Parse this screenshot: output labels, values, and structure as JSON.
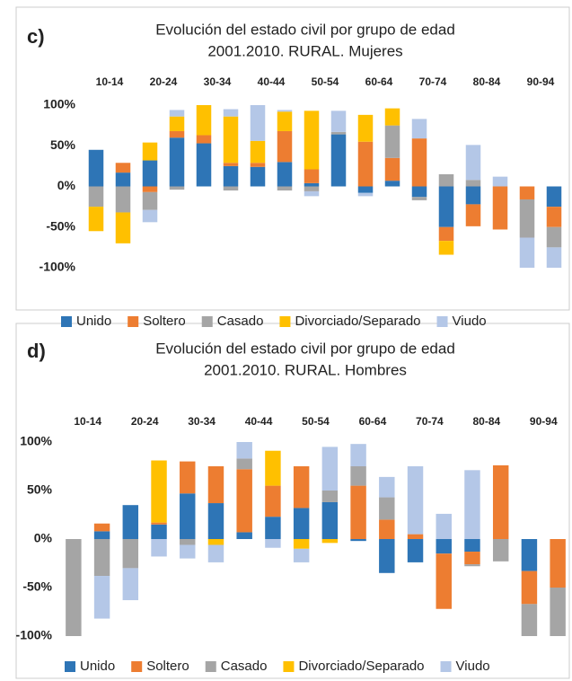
{
  "chart_data": [
    {
      "type": "bar",
      "stacked": true,
      "panel_label": "c)",
      "title": [
        "Evolución del estado civil por grupo de edad",
        "2001.2010. RURAL. Mujeres"
      ],
      "categories": [
        "10-14",
        null,
        "20-24",
        null,
        "30-34",
        null,
        "40-44",
        null,
        "50-54",
        null,
        "60-64",
        null,
        "70-74",
        null,
        "80-84",
        null,
        "90-94",
        null
      ],
      "ylim": [
        -100,
        100
      ],
      "yticks": [
        {
          "value": 100,
          "label": "100%"
        },
        {
          "value": 50,
          "label": "50%"
        },
        {
          "value": 0,
          "label": "0%"
        },
        {
          "value": -50,
          "label": "-50%"
        },
        {
          "value": -100,
          "label": "-100%"
        }
      ],
      "legend": "bottom",
      "series": [
        {
          "name": "Unido",
          "color": "#2e75b6",
          "values": [
            45,
            17,
            32,
            60,
            53,
            25,
            24,
            30,
            4,
            64,
            -8,
            7,
            -13,
            -50,
            -22,
            0,
            0,
            -25
          ]
        },
        {
          "name": "Soltero",
          "color": "#ed7d31",
          "values": [
            0,
            12,
            -7,
            8,
            10,
            4,
            5,
            38,
            17,
            0,
            55,
            28,
            59,
            -17,
            -27,
            -53,
            -16,
            -25
          ]
        },
        {
          "name": "Casado",
          "color": "#a5a5a5",
          "values": [
            -25,
            -32,
            -22,
            -4,
            0,
            -5,
            0,
            -5,
            -6,
            3,
            0,
            40,
            -4,
            15,
            8,
            0,
            -47,
            -25
          ]
        },
        {
          "name": "Divorciado/Separado",
          "color": "#ffc000",
          "values": [
            -30,
            -38,
            22,
            18,
            37,
            57,
            27,
            24,
            72,
            0,
            33,
            21,
            0,
            -17,
            0,
            0,
            0,
            0
          ]
        },
        {
          "name": "Viudo",
          "color": "#b4c7e7",
          "values": [
            0,
            0,
            -15,
            8,
            0,
            9,
            44,
            2,
            -6,
            26,
            -4,
            0,
            24,
            0,
            43,
            12,
            -37,
            -25
          ]
        }
      ]
    },
    {
      "type": "bar",
      "stacked": true,
      "panel_label": "d)",
      "title": [
        "Evolución del estado civil por grupo de edad",
        "2001.2010. RURAL. Hombres"
      ],
      "categories": [
        "10-14",
        null,
        "20-24",
        null,
        "30-34",
        null,
        "40-44",
        null,
        "50-54",
        null,
        "60-64",
        null,
        "70-74",
        null,
        "80-84",
        null,
        "90-94",
        null
      ],
      "ylim": [
        -100,
        100
      ],
      "yticks": [
        {
          "value": 100,
          "label": "100%"
        },
        {
          "value": 50,
          "label": "50%"
        },
        {
          "value": 0,
          "label": "0%"
        },
        {
          "value": -50,
          "label": "-50%"
        },
        {
          "value": -100,
          "label": "-100%"
        }
      ],
      "legend": "bottom",
      "series": [
        {
          "name": "Unido",
          "color": "#2e75b6",
          "values": [
            0,
            8,
            35,
            15,
            47,
            37,
            7,
            23,
            32,
            38,
            -2,
            -35,
            -24,
            -15,
            -13,
            0,
            -33,
            0
          ]
        },
        {
          "name": "Soltero",
          "color": "#ed7d31",
          "values": [
            0,
            8,
            0,
            2,
            33,
            38,
            65,
            32,
            43,
            0,
            55,
            20,
            5,
            -57,
            -13,
            76,
            -34,
            -50
          ]
        },
        {
          "name": "Casado",
          "color": "#a5a5a5",
          "values": [
            -100,
            -38,
            -30,
            0,
            -6,
            0,
            11,
            0,
            0,
            12,
            20,
            23,
            0,
            0,
            -2,
            -23,
            -33,
            -50
          ]
        },
        {
          "name": "Divorciado/Separado",
          "color": "#ffc000",
          "values": [
            0,
            0,
            0,
            64,
            0,
            -6,
            0,
            36,
            -10,
            -4,
            0,
            0,
            0,
            0,
            0,
            0,
            0,
            0
          ]
        },
        {
          "name": "Viudo",
          "color": "#b4c7e7",
          "values": [
            0,
            -44,
            -33,
            -18,
            -14,
            -18,
            17,
            -9,
            -14,
            45,
            23,
            21,
            70,
            26,
            71,
            0,
            0,
            0
          ]
        }
      ]
    }
  ]
}
